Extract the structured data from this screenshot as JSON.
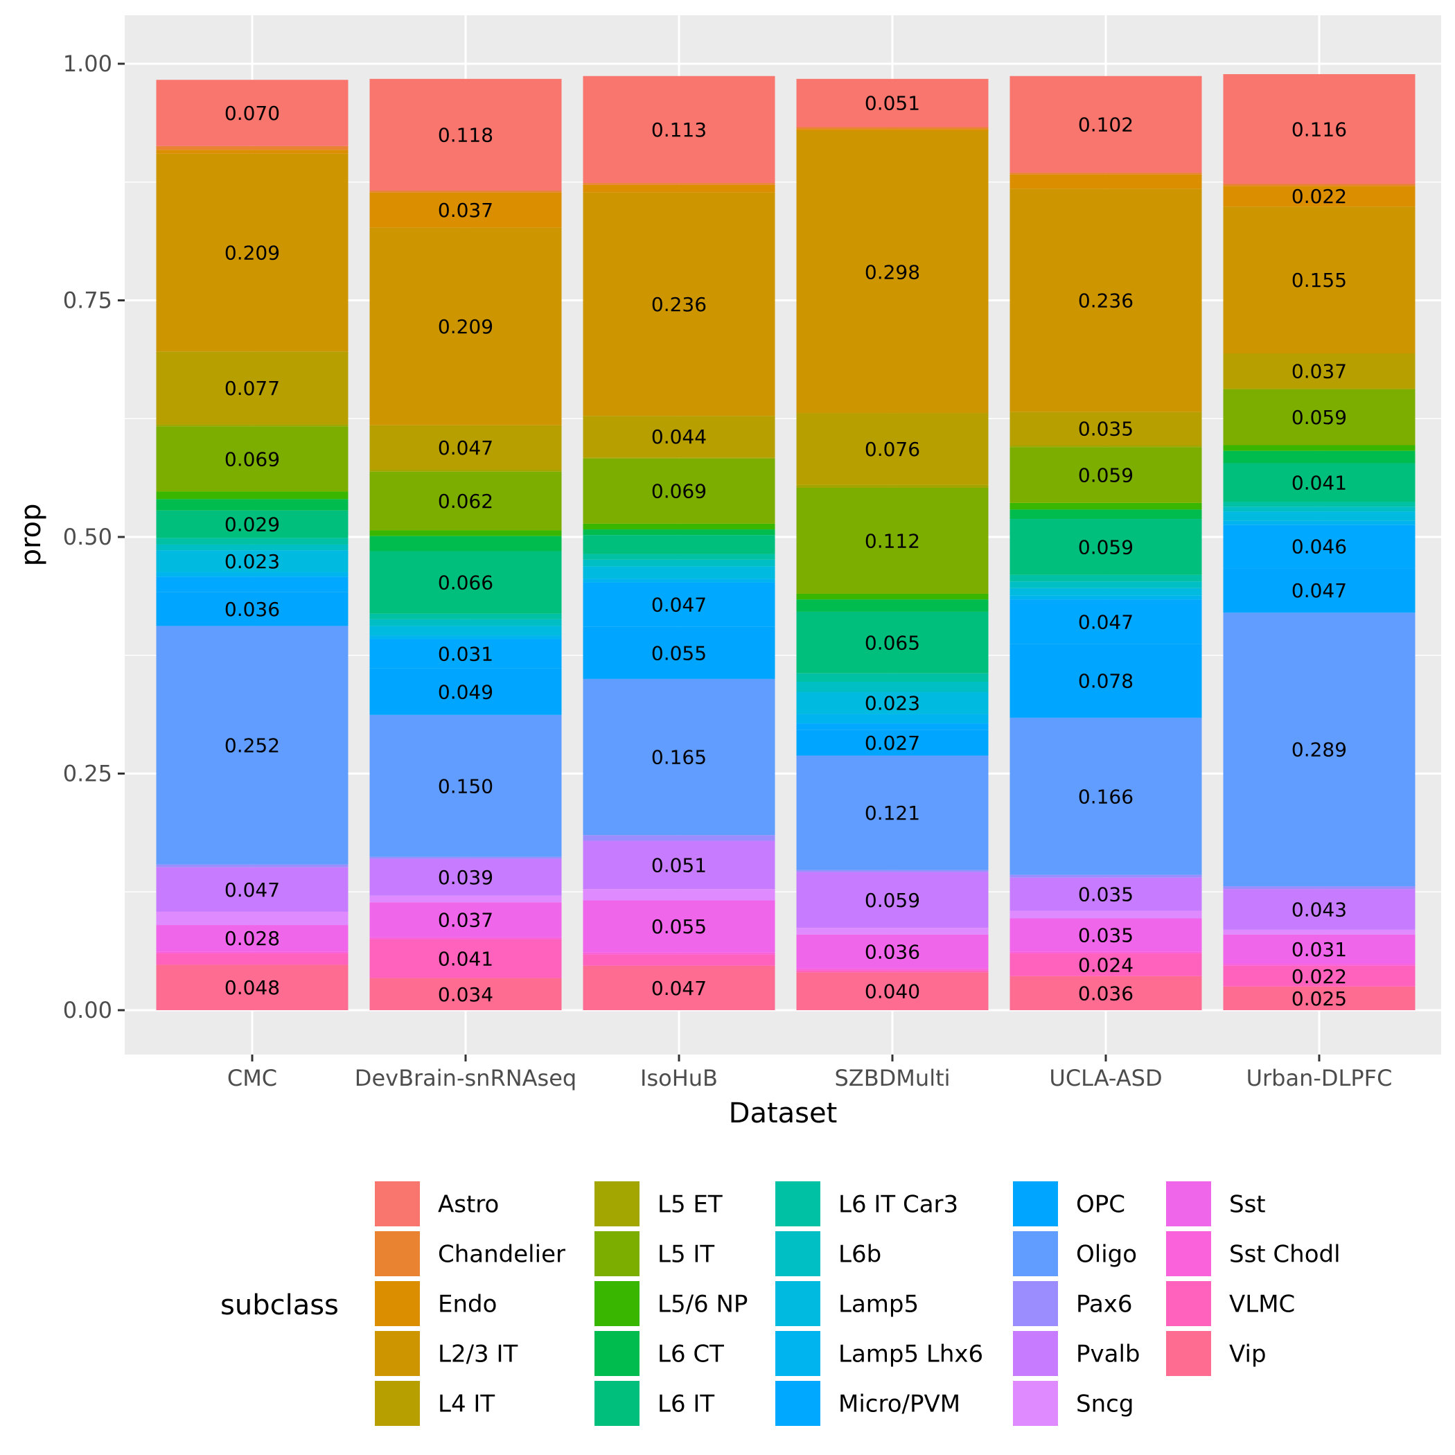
{
  "chart_data": {
    "type": "bar",
    "stacked": true,
    "xlabel": "Dataset",
    "ylabel": "prop",
    "ylim": [
      0,
      1
    ],
    "yticks": [
      "0.00",
      "0.25",
      "0.50",
      "0.75",
      "1.00"
    ],
    "ytick_values": [
      0,
      0.25,
      0.5,
      0.75,
      1.0
    ],
    "grid": true,
    "legend": {
      "title": "subclass",
      "placement": "bottom"
    },
    "categories": [
      "CMC",
      "DevBrain-snRNAseq",
      "IsoHuB",
      "SZBDMulti",
      "UCLA-ASD",
      "Urban-DLPFC"
    ],
    "series": [
      {
        "name": "Astro",
        "color": "#F8766D",
        "values": [
          0.07,
          0.118,
          0.113,
          0.051,
          0.102,
          0.116
        ],
        "labels": [
          "0.070",
          "0.118",
          "0.113",
          "0.051",
          "0.102",
          "0.116"
        ]
      },
      {
        "name": "Chandelier",
        "color": "#EA8331",
        "values": [
          0.004,
          0.002,
          0.002,
          0.002,
          0.002,
          0.002
        ],
        "labels": [
          "",
          "",
          "",
          "",
          "",
          ""
        ]
      },
      {
        "name": "Endo",
        "color": "#DB8E00",
        "values": [
          0.004,
          0.037,
          0.008,
          0.002,
          0.015,
          0.022
        ],
        "labels": [
          "",
          "0.037",
          "",
          "",
          "",
          "0.022"
        ]
      },
      {
        "name": "L2/3 IT",
        "color": "#CD9600",
        "values": [
          0.209,
          0.209,
          0.236,
          0.298,
          0.236,
          0.155
        ],
        "labels": [
          "0.209",
          "0.209",
          "0.236",
          "0.298",
          "0.236",
          "0.155"
        ]
      },
      {
        "name": "L4 IT",
        "color": "#B79F00",
        "values": [
          0.077,
          0.047,
          0.044,
          0.076,
          0.035,
          0.037
        ],
        "labels": [
          "0.077",
          "0.047",
          "0.044",
          "0.076",
          "0.035",
          "0.037"
        ]
      },
      {
        "name": "L5 ET",
        "color": "#A3A500",
        "values": [
          0.002,
          0.002,
          0.001,
          0.003,
          0.002,
          0.001
        ],
        "labels": [
          "",
          "",
          "",
          "",
          "",
          ""
        ]
      },
      {
        "name": "L5 IT",
        "color": "#7CAE00",
        "values": [
          0.069,
          0.062,
          0.069,
          0.112,
          0.059,
          0.059
        ],
        "labels": [
          "0.069",
          "0.062",
          "0.069",
          "0.112",
          "0.059",
          "0.059"
        ]
      },
      {
        "name": "L5/6 NP",
        "color": "#39B600",
        "values": [
          0.008,
          0.006,
          0.006,
          0.006,
          0.007,
          0.006
        ],
        "labels": [
          "",
          "",
          "",
          "",
          "",
          ""
        ]
      },
      {
        "name": "L6 CT",
        "color": "#00BB4E",
        "values": [
          0.012,
          0.016,
          0.006,
          0.013,
          0.01,
          0.013
        ],
        "labels": [
          "",
          "",
          "",
          "",
          "",
          ""
        ]
      },
      {
        "name": "L6 IT",
        "color": "#00BF7D",
        "values": [
          0.029,
          0.066,
          0.02,
          0.065,
          0.059,
          0.041
        ],
        "labels": [
          "0.029",
          "0.066",
          "",
          "0.065",
          "0.059",
          "0.041"
        ]
      },
      {
        "name": "L6 IT Car3",
        "color": "#00C1A3",
        "values": [
          0.007,
          0.006,
          0.006,
          0.009,
          0.007,
          0.005
        ],
        "labels": [
          "",
          "",
          "",
          "",
          "",
          ""
        ]
      },
      {
        "name": "L6b",
        "color": "#00BFC4",
        "values": [
          0.006,
          0.007,
          0.007,
          0.011,
          0.007,
          0.005
        ],
        "labels": [
          "",
          "",
          "",
          "",
          "",
          ""
        ]
      },
      {
        "name": "Lamp5",
        "color": "#00BAE0",
        "values": [
          0.023,
          0.01,
          0.013,
          0.023,
          0.008,
          0.01
        ],
        "labels": [
          "0.023",
          "",
          "",
          "0.023",
          "",
          ""
        ]
      },
      {
        "name": "Lamp5 Lhx6",
        "color": "#00B4EF",
        "values": [
          0.005,
          0.004,
          0.004,
          0.01,
          0.004,
          0.004
        ],
        "labels": [
          "",
          "",
          "",
          "",
          "",
          ""
        ]
      },
      {
        "name": "Micro/PVM",
        "color": "#00A9FF",
        "values": [
          0.016,
          0.031,
          0.047,
          0.007,
          0.047,
          0.046
        ],
        "labels": [
          "",
          "0.031",
          "0.047",
          "",
          "0.047",
          "0.046"
        ]
      },
      {
        "name": "OPC",
        "color": "#00A5FF",
        "values": [
          0.036,
          0.049,
          0.055,
          0.027,
          0.078,
          0.047
        ],
        "labels": [
          "0.036",
          "0.049",
          "0.055",
          "0.027",
          "0.078",
          "0.047"
        ]
      },
      {
        "name": "Oligo",
        "color": "#619CFF",
        "values": [
          0.252,
          0.15,
          0.165,
          0.121,
          0.166,
          0.289
        ],
        "labels": [
          "0.252",
          "0.150",
          "0.165",
          "0.121",
          "0.166",
          "0.289"
        ]
      },
      {
        "name": "Pax6",
        "color": "#9C8DFF",
        "values": [
          0.003,
          0.002,
          0.006,
          0.002,
          0.003,
          0.003
        ],
        "labels": [
          "",
          "",
          "",
          "",
          "",
          ""
        ]
      },
      {
        "name": "Pvalb",
        "color": "#C77CFF",
        "values": [
          0.047,
          0.039,
          0.051,
          0.059,
          0.035,
          0.043
        ],
        "labels": [
          "0.047",
          "0.039",
          "0.051",
          "0.059",
          "0.035",
          "0.043"
        ]
      },
      {
        "name": "Sncg",
        "color": "#E08AFF",
        "values": [
          0.014,
          0.007,
          0.012,
          0.007,
          0.008,
          0.005
        ],
        "labels": [
          "",
          "",
          "",
          "",
          "",
          ""
        ]
      },
      {
        "name": "Sst",
        "color": "#F066EA",
        "values": [
          0.028,
          0.037,
          0.055,
          0.036,
          0.035,
          0.031
        ],
        "labels": [
          "0.028",
          "0.037",
          "0.055",
          "0.036",
          "0.035",
          "0.031"
        ]
      },
      {
        "name": "Sst Chodl",
        "color": "#FA62DB",
        "values": [
          0.002,
          0.002,
          0.002,
          0.002,
          0.002,
          0.002
        ],
        "labels": [
          "",
          "",
          "",
          "",
          "",
          ""
        ]
      },
      {
        "name": "VLMC",
        "color": "#FF62BC",
        "values": [
          0.012,
          0.041,
          0.012,
          0.002,
          0.024,
          0.022
        ],
        "labels": [
          "",
          "0.041",
          "",
          "",
          "0.024",
          "0.022"
        ]
      },
      {
        "name": "Vip",
        "color": "#FF6C91",
        "values": [
          0.048,
          0.034,
          0.047,
          0.04,
          0.036,
          0.025
        ],
        "labels": [
          "0.048",
          "0.034",
          "0.047",
          "0.040",
          "0.036",
          "0.025"
        ]
      }
    ]
  }
}
